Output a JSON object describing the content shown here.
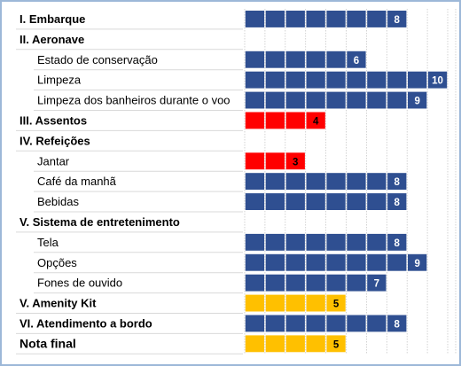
{
  "chart_data": {
    "type": "bar",
    "orientation": "horizontal",
    "xlim": [
      0,
      10
    ],
    "colors": {
      "blue": "#2f4f91",
      "red": "#ff0000",
      "yellow": "#ffc000",
      "grid": "#c8c8c8",
      "row_separator": "#d9d9d9"
    },
    "rows": [
      {
        "label": "I. Embarque",
        "kind": "section",
        "value": 8,
        "color": "blue"
      },
      {
        "label": "II. Aeronave",
        "kind": "section",
        "value": null
      },
      {
        "label": "Estado de conservação",
        "kind": "item",
        "value": 6,
        "color": "blue"
      },
      {
        "label": "Limpeza",
        "kind": "item",
        "value": 10,
        "color": "blue"
      },
      {
        "label": "Limpeza dos banheiros durante o voo",
        "kind": "item",
        "value": 9,
        "color": "blue"
      },
      {
        "label": "III. Assentos",
        "kind": "section",
        "value": 4,
        "color": "red"
      },
      {
        "label": "IV. Refeições",
        "kind": "section",
        "value": null
      },
      {
        "label": "Jantar",
        "kind": "item",
        "value": 3,
        "color": "red"
      },
      {
        "label": "Café da manhã",
        "kind": "item",
        "value": 8,
        "color": "blue"
      },
      {
        "label": "Bebidas",
        "kind": "item",
        "value": 8,
        "color": "blue"
      },
      {
        "label": "V. Sistema de entretenimento",
        "kind": "section",
        "value": null
      },
      {
        "label": "Tela",
        "kind": "item",
        "value": 8,
        "color": "blue"
      },
      {
        "label": "Opções",
        "kind": "item",
        "value": 9,
        "color": "blue"
      },
      {
        "label": "Fones de ouvido",
        "kind": "item",
        "value": 7,
        "color": "blue"
      },
      {
        "label": "V. Amenity Kit",
        "kind": "section",
        "value": 5,
        "color": "yellow"
      },
      {
        "label": "VI. Atendimento a bordo",
        "kind": "section",
        "value": 8,
        "color": "blue"
      },
      {
        "label": "Nota final",
        "kind": "final",
        "value": 5,
        "color": "yellow"
      }
    ]
  }
}
